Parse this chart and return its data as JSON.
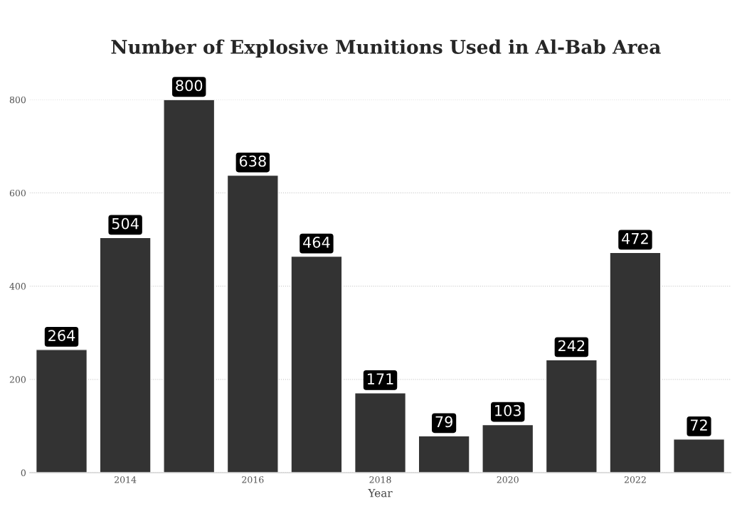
{
  "chart_data": {
    "type": "bar",
    "title": "Number of Explosive Munitions Used in Al-Bab Area",
    "xlabel": "Year",
    "x": [
      2013,
      2014,
      2015,
      2016,
      2017,
      2018,
      2019,
      2020,
      2021,
      2022,
      2023
    ],
    "values": [
      264,
      504,
      800,
      638,
      464,
      171,
      79,
      103,
      242,
      472,
      72
    ],
    "color": "#333333",
    "xlim": [
      2012.5,
      2023.5
    ],
    "xticks": [
      2014,
      2016,
      2018,
      2020,
      2022
    ],
    "ylim": [
      0,
      800
    ],
    "yticks": [
      0,
      200,
      400,
      600,
      800
    ],
    "grid": "y",
    "data_labels": true
  }
}
